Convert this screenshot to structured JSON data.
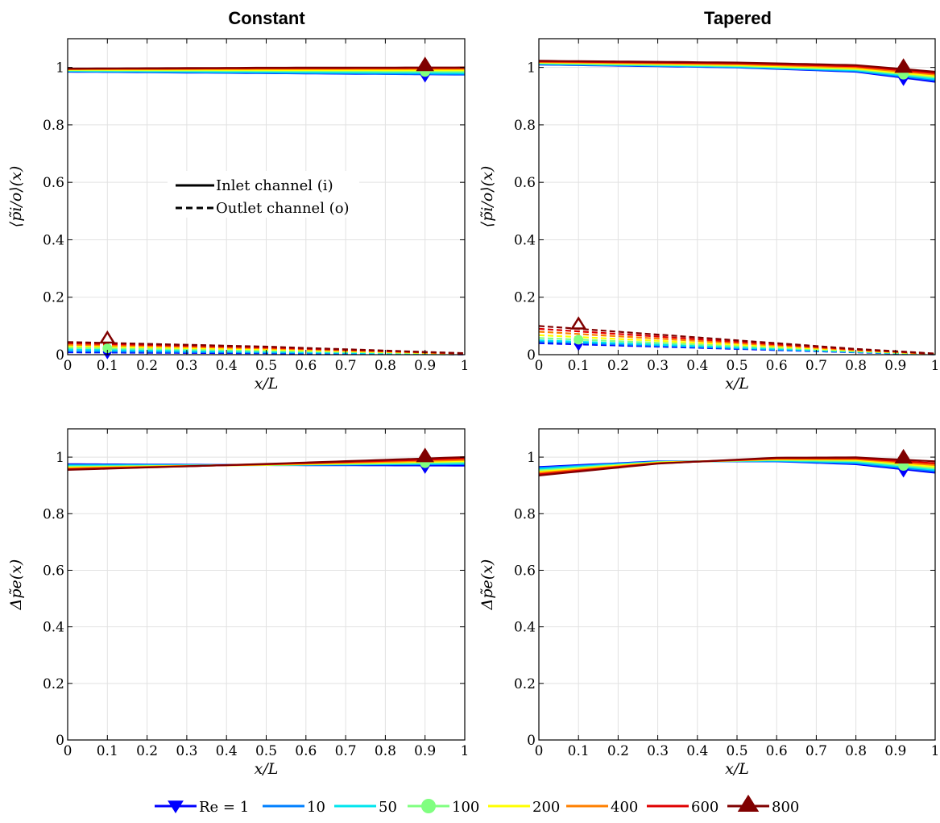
{
  "columns": {
    "left": "Constant",
    "right": "Tapered"
  },
  "axes": {
    "xlabel": "x/L",
    "ylabel_top": "⟨p̃i/o⟩(x)",
    "ylabel_bottom": "Δp̃e(x)",
    "xticks": [
      "0",
      "0.1",
      "0.2",
      "0.3",
      "0.4",
      "0.5",
      "0.6",
      "0.7",
      "0.8",
      "0.9",
      "1"
    ],
    "yticks": [
      "0",
      "0.2",
      "0.4",
      "0.6",
      "0.8",
      "1"
    ]
  },
  "legend_inlet": "Inlet channel (i)",
  "legend_outlet": "Outlet channel (o)",
  "colors": {
    "1": "#0000ff",
    "10": "#0080ff",
    "50": "#00e5ee",
    "100": "#80ff80",
    "200": "#ffff00",
    "400": "#ff8000",
    "600": "#e00000",
    "800": "#800000"
  },
  "re_legend": [
    {
      "label": "Re = 1",
      "re": "1",
      "marker": "tri-down"
    },
    {
      "label": "10",
      "re": "10",
      "marker": "none"
    },
    {
      "label": "50",
      "re": "50",
      "marker": "none"
    },
    {
      "label": "100",
      "re": "100",
      "marker": "circle"
    },
    {
      "label": "200",
      "re": "200",
      "marker": "none"
    },
    {
      "label": "400",
      "re": "400",
      "marker": "none"
    },
    {
      "label": "600",
      "re": "600",
      "marker": "none"
    },
    {
      "label": "800",
      "re": "800",
      "marker": "tri-up"
    }
  ],
  "chart_data": [
    {
      "id": "constant-pressure",
      "type": "line",
      "xlim": [
        0,
        1
      ],
      "ylim": [
        0,
        1.1
      ],
      "grid": true,
      "series": [
        {
          "re": "1",
          "x": [
            0,
            0.5,
            1
          ],
          "inlet": [
            0.985,
            0.98,
            0.975
          ],
          "outlet": [
            0.008,
            0.005,
            0.001
          ]
        },
        {
          "re": "10",
          "x": [
            0,
            0.5,
            1
          ],
          "inlet": [
            0.986,
            0.981,
            0.976
          ],
          "outlet": [
            0.012,
            0.007,
            0.002
          ]
        },
        {
          "re": "50",
          "x": [
            0,
            0.5,
            1
          ],
          "inlet": [
            0.988,
            0.984,
            0.98
          ],
          "outlet": [
            0.018,
            0.01,
            0.002
          ]
        },
        {
          "re": "100",
          "x": [
            0,
            0.5,
            1
          ],
          "inlet": [
            0.99,
            0.988,
            0.985
          ],
          "outlet": [
            0.024,
            0.014,
            0.003
          ]
        },
        {
          "re": "200",
          "x": [
            0,
            0.5,
            1
          ],
          "inlet": [
            0.992,
            0.991,
            0.99
          ],
          "outlet": [
            0.03,
            0.018,
            0.003
          ]
        },
        {
          "re": "400",
          "x": [
            0,
            0.5,
            1
          ],
          "inlet": [
            0.994,
            0.995,
            0.995
          ],
          "outlet": [
            0.035,
            0.022,
            0.004
          ]
        },
        {
          "re": "600",
          "x": [
            0,
            0.5,
            1
          ],
          "inlet": [
            0.995,
            0.997,
            0.998
          ],
          "outlet": [
            0.04,
            0.025,
            0.004
          ]
        },
        {
          "re": "800",
          "x": [
            0,
            0.5,
            1
          ],
          "inlet": [
            0.996,
            0.999,
            1.0
          ],
          "outlet": [
            0.044,
            0.028,
            0.005
          ]
        }
      ]
    },
    {
      "id": "tapered-pressure",
      "type": "line",
      "xlim": [
        0,
        1
      ],
      "ylim": [
        0,
        1.1
      ],
      "grid": true,
      "series": [
        {
          "re": "1",
          "x": [
            0,
            0.5,
            0.8,
            1
          ],
          "inlet": [
            1.01,
            1.0,
            0.985,
            0.95
          ],
          "outlet": [
            0.04,
            0.02,
            0.008,
            0.001
          ]
        },
        {
          "re": "10",
          "x": [
            0,
            0.5,
            0.8,
            1
          ],
          "inlet": [
            1.011,
            1.001,
            0.987,
            0.955
          ],
          "outlet": [
            0.045,
            0.022,
            0.009,
            0.001
          ]
        },
        {
          "re": "50",
          "x": [
            0,
            0.5,
            0.8,
            1
          ],
          "inlet": [
            1.013,
            1.003,
            0.99,
            0.96
          ],
          "outlet": [
            0.05,
            0.025,
            0.01,
            0.001
          ]
        },
        {
          "re": "100",
          "x": [
            0,
            0.5,
            0.8,
            1
          ],
          "inlet": [
            1.015,
            1.005,
            0.993,
            0.965
          ],
          "outlet": [
            0.058,
            0.03,
            0.012,
            0.002
          ]
        },
        {
          "re": "200",
          "x": [
            0,
            0.5,
            0.8,
            1
          ],
          "inlet": [
            1.017,
            1.008,
            0.996,
            0.97
          ],
          "outlet": [
            0.068,
            0.035,
            0.014,
            0.002
          ]
        },
        {
          "re": "400",
          "x": [
            0,
            0.5,
            0.8,
            1
          ],
          "inlet": [
            1.019,
            1.011,
            1.0,
            0.975
          ],
          "outlet": [
            0.08,
            0.04,
            0.016,
            0.003
          ]
        },
        {
          "re": "600",
          "x": [
            0,
            0.5,
            0.8,
            1
          ],
          "inlet": [
            1.021,
            1.014,
            1.004,
            0.98
          ],
          "outlet": [
            0.09,
            0.045,
            0.018,
            0.003
          ]
        },
        {
          "re": "800",
          "x": [
            0,
            0.5,
            0.8,
            1
          ],
          "inlet": [
            1.023,
            1.017,
            1.008,
            0.985
          ],
          "outlet": [
            0.1,
            0.05,
            0.02,
            0.004
          ]
        }
      ]
    },
    {
      "id": "constant-deltap",
      "type": "line",
      "xlim": [
        0,
        1
      ],
      "ylim": [
        0,
        1.1
      ],
      "grid": true,
      "series": [
        {
          "re": "1",
          "x": [
            0,
            0.5,
            1
          ],
          "y": [
            0.975,
            0.972,
            0.97
          ]
        },
        {
          "re": "10",
          "x": [
            0,
            0.5,
            1
          ],
          "y": [
            0.972,
            0.972,
            0.975
          ]
        },
        {
          "re": "50",
          "x": [
            0,
            0.5,
            1
          ],
          "y": [
            0.97,
            0.972,
            0.978
          ]
        },
        {
          "re": "100",
          "x": [
            0,
            0.5,
            1
          ],
          "y": [
            0.966,
            0.972,
            0.982
          ]
        },
        {
          "re": "200",
          "x": [
            0,
            0.5,
            1
          ],
          "y": [
            0.963,
            0.973,
            0.986
          ]
        },
        {
          "re": "400",
          "x": [
            0,
            0.5,
            1
          ],
          "y": [
            0.96,
            0.974,
            0.99
          ]
        },
        {
          "re": "600",
          "x": [
            0,
            0.5,
            1
          ],
          "y": [
            0.957,
            0.975,
            0.995
          ]
        },
        {
          "re": "800",
          "x": [
            0,
            0.5,
            1
          ],
          "y": [
            0.955,
            0.976,
            1.0
          ]
        }
      ]
    },
    {
      "id": "tapered-deltap",
      "type": "line",
      "xlim": [
        0,
        1
      ],
      "ylim": [
        0,
        1.1
      ],
      "grid": true,
      "series": [
        {
          "re": "1",
          "x": [
            0,
            0.3,
            0.6,
            0.8,
            1
          ],
          "y": [
            0.965,
            0.985,
            0.985,
            0.975,
            0.945
          ]
        },
        {
          "re": "10",
          "x": [
            0,
            0.3,
            0.6,
            0.8,
            1
          ],
          "y": [
            0.962,
            0.984,
            0.986,
            0.978,
            0.95
          ]
        },
        {
          "re": "50",
          "x": [
            0,
            0.3,
            0.6,
            0.8,
            1
          ],
          "y": [
            0.958,
            0.983,
            0.988,
            0.982,
            0.955
          ]
        },
        {
          "re": "100",
          "x": [
            0,
            0.3,
            0.6,
            0.8,
            1
          ],
          "y": [
            0.953,
            0.982,
            0.99,
            0.986,
            0.96
          ]
        },
        {
          "re": "200",
          "x": [
            0,
            0.3,
            0.6,
            0.8,
            1
          ],
          "y": [
            0.948,
            0.981,
            0.992,
            0.99,
            0.966
          ]
        },
        {
          "re": "400",
          "x": [
            0,
            0.3,
            0.6,
            0.8,
            1
          ],
          "y": [
            0.944,
            0.979,
            0.994,
            0.993,
            0.972
          ]
        },
        {
          "re": "600",
          "x": [
            0,
            0.3,
            0.6,
            0.8,
            1
          ],
          "y": [
            0.939,
            0.978,
            0.996,
            0.996,
            0.978
          ]
        },
        {
          "re": "800",
          "x": [
            0,
            0.3,
            0.6,
            0.8,
            1
          ],
          "y": [
            0.935,
            0.977,
            0.998,
            0.999,
            0.985
          ]
        }
      ]
    }
  ]
}
